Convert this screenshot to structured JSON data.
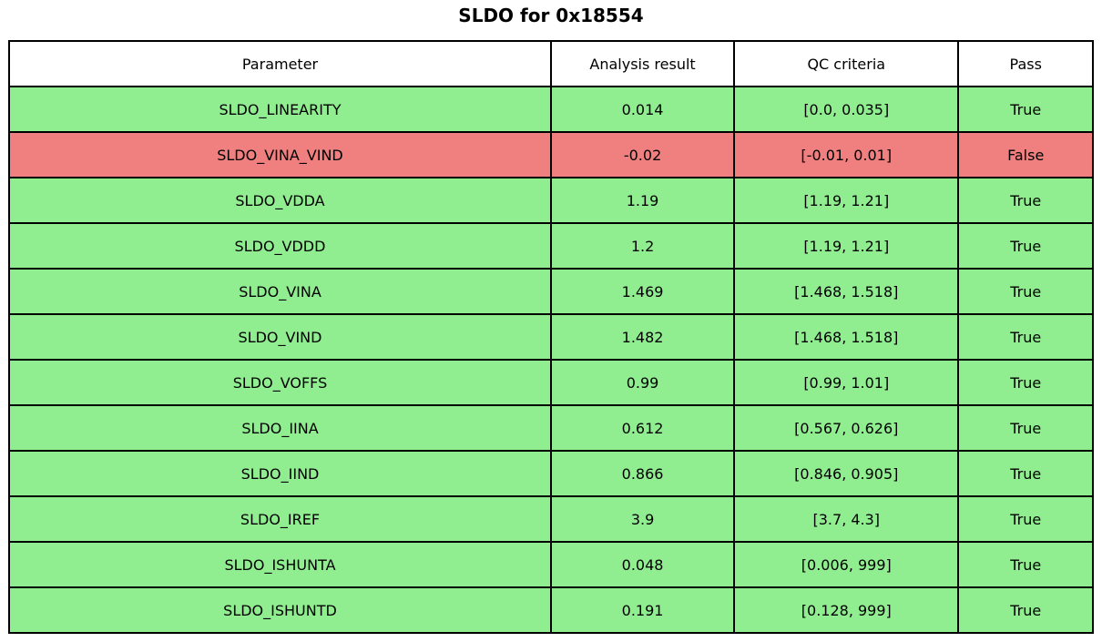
{
  "title": "SLDO for 0x18554",
  "colors": {
    "pass_green": "#90EE90",
    "fail_red": "#F08080",
    "header_bg": "#FFFFFF",
    "border": "#000000",
    "text": "#000000"
  },
  "chart_data": {
    "type": "table",
    "title": "SLDO for 0x18554",
    "columns": [
      "Parameter",
      "Analysis result",
      "QC criteria",
      "Pass"
    ],
    "rows": [
      {
        "parameter": "SLDO_LINEARITY",
        "result": "0.014",
        "criteria": "[0.0, 0.035]",
        "pass": "True"
      },
      {
        "parameter": "SLDO_VINA_VIND",
        "result": "-0.02",
        "criteria": "[-0.01, 0.01]",
        "pass": "False"
      },
      {
        "parameter": "SLDO_VDDA",
        "result": "1.19",
        "criteria": "[1.19, 1.21]",
        "pass": "True"
      },
      {
        "parameter": "SLDO_VDDD",
        "result": "1.2",
        "criteria": "[1.19, 1.21]",
        "pass": "True"
      },
      {
        "parameter": "SLDO_VINA",
        "result": "1.469",
        "criteria": "[1.468, 1.518]",
        "pass": "True"
      },
      {
        "parameter": "SLDO_VIND",
        "result": "1.482",
        "criteria": "[1.468, 1.518]",
        "pass": "True"
      },
      {
        "parameter": "SLDO_VOFFS",
        "result": "0.99",
        "criteria": "[0.99, 1.01]",
        "pass": "True"
      },
      {
        "parameter": "SLDO_IINA",
        "result": "0.612",
        "criteria": "[0.567, 0.626]",
        "pass": "True"
      },
      {
        "parameter": "SLDO_IIND",
        "result": "0.866",
        "criteria": "[0.846, 0.905]",
        "pass": "True"
      },
      {
        "parameter": "SLDO_IREF",
        "result": "3.9",
        "criteria": "[3.7, 4.3]",
        "pass": "True"
      },
      {
        "parameter": "SLDO_ISHUNTA",
        "result": "0.048",
        "criteria": "[0.006, 999]",
        "pass": "True"
      },
      {
        "parameter": "SLDO_ISHUNTD",
        "result": "0.191",
        "criteria": "[0.128, 999]",
        "pass": "True"
      }
    ]
  }
}
